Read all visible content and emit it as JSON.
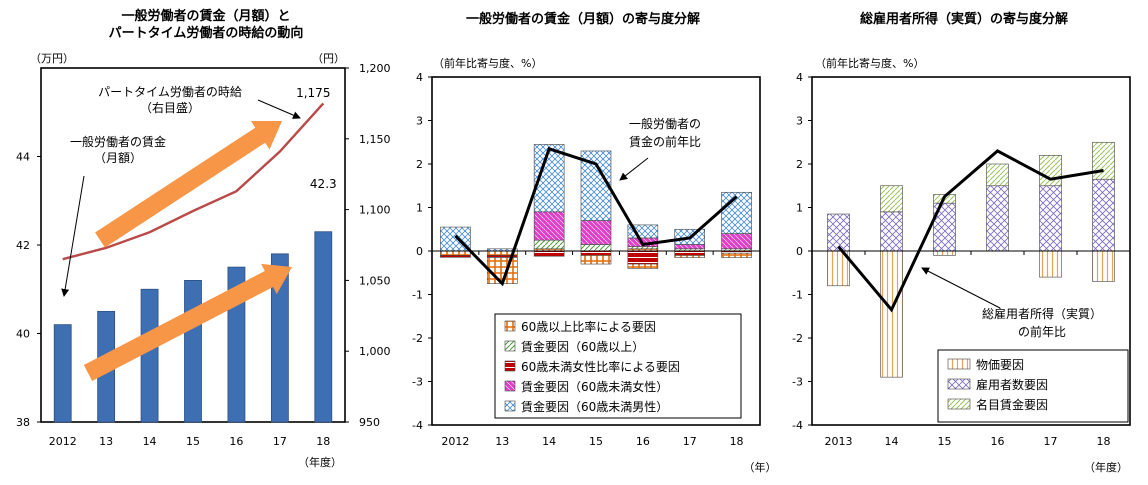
{
  "chart_data": [
    {
      "type": "bar",
      "title": [
        "一般労働者の賃金（月額）と",
        "パートタイム労働者の時給の動向"
      ],
      "left_unit": "（万円）",
      "right_unit": "（円）",
      "x_unit": "（年度）",
      "categories": [
        "2012",
        "13",
        "14",
        "15",
        "16",
        "17",
        "18"
      ],
      "ylim_left": [
        38,
        46
      ],
      "yticks_left": [
        "38",
        "40",
        "42",
        "44"
      ],
      "ylim_right": [
        950,
        1200
      ],
      "yticks_right": [
        "950",
        "1,000",
        "1,050",
        "1,100",
        "1,150",
        "1,200"
      ],
      "series": [
        {
          "type": "bar",
          "axis": "left",
          "values": [
            40.2,
            40.5,
            41.0,
            41.2,
            41.5,
            41.8,
            42.3
          ],
          "color": "#3f6fb3"
        },
        {
          "type": "line",
          "axis": "right",
          "values": [
            1065,
            1073,
            1084,
            1099,
            1113,
            1141,
            1175
          ],
          "color": "#b94a48"
        }
      ],
      "annotations": [
        {
          "text": "42.3"
        },
        {
          "text": "1,175"
        },
        {
          "text": [
            "パートタイム労働者の時給",
            "（右目盛）"
          ]
        },
        {
          "text": [
            "一般労働者の賃金",
            "（月額）"
          ]
        }
      ],
      "arrow_color": "#f79646"
    },
    {
      "type": "stacked-bar+line",
      "title": "一般労働者の賃金（月額）の寄与度分解",
      "y_unit": "（前年比寄与度、%）",
      "x_unit": "（年）",
      "categories": [
        "2012",
        "13",
        "14",
        "15",
        "16",
        "17",
        "18"
      ],
      "ylim": [
        -4,
        4
      ],
      "yticks": [
        "-4",
        "-3",
        "-2",
        "-1",
        "0",
        "1",
        "2",
        "3",
        "4"
      ],
      "components": [
        {
          "name": "60歳以上比率による要因",
          "values": [
            -0.1,
            -0.1,
            0.05,
            0.0,
            0.05,
            0.0,
            0.0
          ],
          "color": "#e36c09"
        },
        {
          "name": "賃金要因（60歳以上）",
          "values": [
            0.0,
            0.0,
            0.2,
            0.15,
            0.05,
            0.05,
            0.05
          ],
          "color": "#4f9a3a"
        },
        {
          "name": "60歳未満女性比率による要因",
          "values": [
            -0.05,
            -0.05,
            -0.12,
            -0.1,
            -0.3,
            -0.1,
            -0.05
          ],
          "color": "#c00000"
        },
        {
          "name": "賃金要因（60歳未満女性）",
          "values": [
            0.0,
            0.0,
            0.65,
            0.55,
            0.2,
            0.1,
            0.35
          ],
          "color": "#e040c8"
        },
        {
          "name": "賃金要因（60歳未満男性）",
          "values": [
            0.55,
            0.05,
            1.55,
            1.6,
            0.3,
            0.35,
            0.95
          ],
          "color": "#4a8ed6"
        }
      ],
      "negative_extra": [
        0.0,
        -0.6,
        0.0,
        -0.2,
        -0.1,
        -0.05,
        -0.1
      ],
      "line": {
        "name": "一般労働者の賃金の前年比",
        "values": [
          0.35,
          -0.75,
          2.35,
          2.0,
          0.15,
          0.3,
          1.25
        ]
      },
      "annotation": [
        "一般労働者の",
        "賃金の前年比"
      ]
    },
    {
      "type": "stacked-bar+line",
      "title": "総雇用者所得（実質）の寄与度分解",
      "y_unit": "（前年比寄与度、%）",
      "x_unit": "（年度）",
      "categories": [
        "2013",
        "14",
        "15",
        "16",
        "17",
        "18"
      ],
      "ylim": [
        -4,
        4
      ],
      "yticks": [
        "-4",
        "-3",
        "-2",
        "-1",
        "0",
        "1",
        "2",
        "3",
        "4"
      ],
      "components": [
        {
          "name": "物価要因",
          "values": [
            -0.8,
            -2.9,
            -0.1,
            0.0,
            -0.6,
            -0.7
          ],
          "color": "#e8a25a"
        },
        {
          "name": "雇用者数要因",
          "values": [
            0.85,
            0.9,
            1.1,
            1.5,
            1.5,
            1.65
          ],
          "color": "#7b68c4"
        },
        {
          "name": "名目賃金要因",
          "values": [
            0.0,
            0.6,
            0.2,
            0.5,
            0.7,
            0.85
          ],
          "color": "#9bc35b"
        }
      ],
      "line": {
        "name": "総雇用者所得（実質）の前年比",
        "values": [
          0.1,
          -1.35,
          1.25,
          2.3,
          1.65,
          1.85
        ]
      },
      "annotation": [
        "総雇用者所得（実質）",
        "の前年比"
      ]
    }
  ]
}
